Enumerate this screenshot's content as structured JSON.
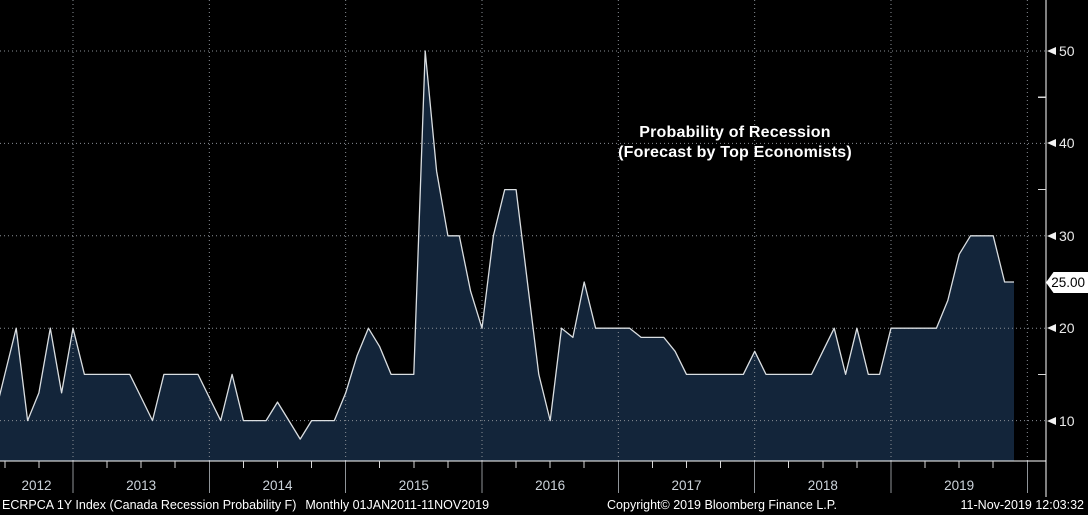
{
  "header": {
    "title_line1": "Probability of Recession",
    "title_line2": "(Forecast by Top Economists)"
  },
  "chart_data": {
    "type": "area",
    "title": "Probability of Recession (Forecast by Top Economists)",
    "xlabel": "",
    "ylabel": "",
    "ylim": [
      5.5,
      55
    ],
    "grid": "dotted",
    "legend_position": "none",
    "x_year_labels": [
      "2012",
      "2013",
      "2014",
      "2015",
      "2016",
      "2017",
      "2018",
      "2019"
    ],
    "y_major_ticks": [
      50,
      40,
      30,
      20,
      10
    ],
    "y_minor_ticks": [
      45,
      35,
      15
    ],
    "last_value": 25.0,
    "last_value_label": "25.00",
    "dates": [
      "2012-06",
      "2012-07",
      "2012-08",
      "2012-09",
      "2012-10",
      "2012-11",
      "2012-12",
      "2013-01",
      "2013-02",
      "2013-03",
      "2013-04",
      "2013-05",
      "2013-06",
      "2013-07",
      "2013-08",
      "2013-09",
      "2013-10",
      "2013-11",
      "2013-12",
      "2014-01",
      "2014-02",
      "2014-03",
      "2014-04",
      "2014-05",
      "2014-06",
      "2014-07",
      "2014-08",
      "2014-09",
      "2014-10",
      "2014-11",
      "2014-12",
      "2015-01",
      "2015-02",
      "2015-03",
      "2015-04",
      "2015-05",
      "2015-06",
      "2015-07",
      "2015-08",
      "2015-09",
      "2015-10",
      "2015-11",
      "2015-12",
      "2016-01",
      "2016-02",
      "2016-03",
      "2016-04",
      "2016-05",
      "2016-06",
      "2016-07",
      "2016-08",
      "2016-09",
      "2016-10",
      "2016-11",
      "2016-12",
      "2017-01",
      "2017-02",
      "2017-03",
      "2017-04",
      "2017-05",
      "2017-06",
      "2017-07",
      "2017-08",
      "2017-09",
      "2017-10",
      "2017-11",
      "2017-12",
      "2018-01",
      "2018-02",
      "2018-03",
      "2018-04",
      "2018-05",
      "2018-06",
      "2018-07",
      "2018-08",
      "2018-09",
      "2018-10",
      "2018-11",
      "2018-12",
      "2019-01",
      "2019-02",
      "2019-03",
      "2019-04",
      "2019-05",
      "2019-06",
      "2019-07",
      "2019-08",
      "2019-09",
      "2019-10",
      "2019-11"
    ],
    "values": [
      10,
      15,
      20,
      10,
      13,
      20,
      13,
      20,
      15,
      15,
      15,
      15,
      15,
      12.5,
      10,
      15,
      15,
      15,
      15,
      12.5,
      10,
      15,
      10,
      10,
      10,
      12,
      10,
      8,
      10,
      10,
      10,
      13,
      17,
      20,
      18,
      15,
      15,
      15,
      50,
      37,
      30,
      30,
      24,
      20,
      30,
      35,
      35,
      25,
      15,
      10,
      20,
      19,
      25,
      20,
      20,
      20,
      20,
      19,
      19,
      19,
      17.5,
      15,
      15,
      15,
      15,
      15,
      15,
      17.5,
      15,
      15,
      15,
      15,
      15,
      17.5,
      20,
      15,
      20,
      15,
      15,
      20,
      20,
      20,
      20,
      20,
      23,
      28,
      30,
      30,
      30,
      25
    ]
  },
  "footer": {
    "instrument": "ECRPCA 1Y Index (Canada Recession Probability F)",
    "periodicity_range": "Monthly 01JAN2011-11NOV2019",
    "copyright": "Copyright© 2019 Bloomberg Finance L.P.",
    "timestamp": "11-Nov-2019 12:03:32"
  },
  "colors": {
    "background": "#000000",
    "area_fill": "#13253a",
    "series_line": "#dadee1",
    "grid": "#8a8f96",
    "axis": "#ffffff",
    "tick_label": "#e9e9e9",
    "year_label": "#ccd3da",
    "divider_stub": "#8f9499",
    "badge_bg": "#ffffff",
    "badge_text": "#000000",
    "title_text": "#ffffff",
    "footer_text": "#ffffff"
  }
}
